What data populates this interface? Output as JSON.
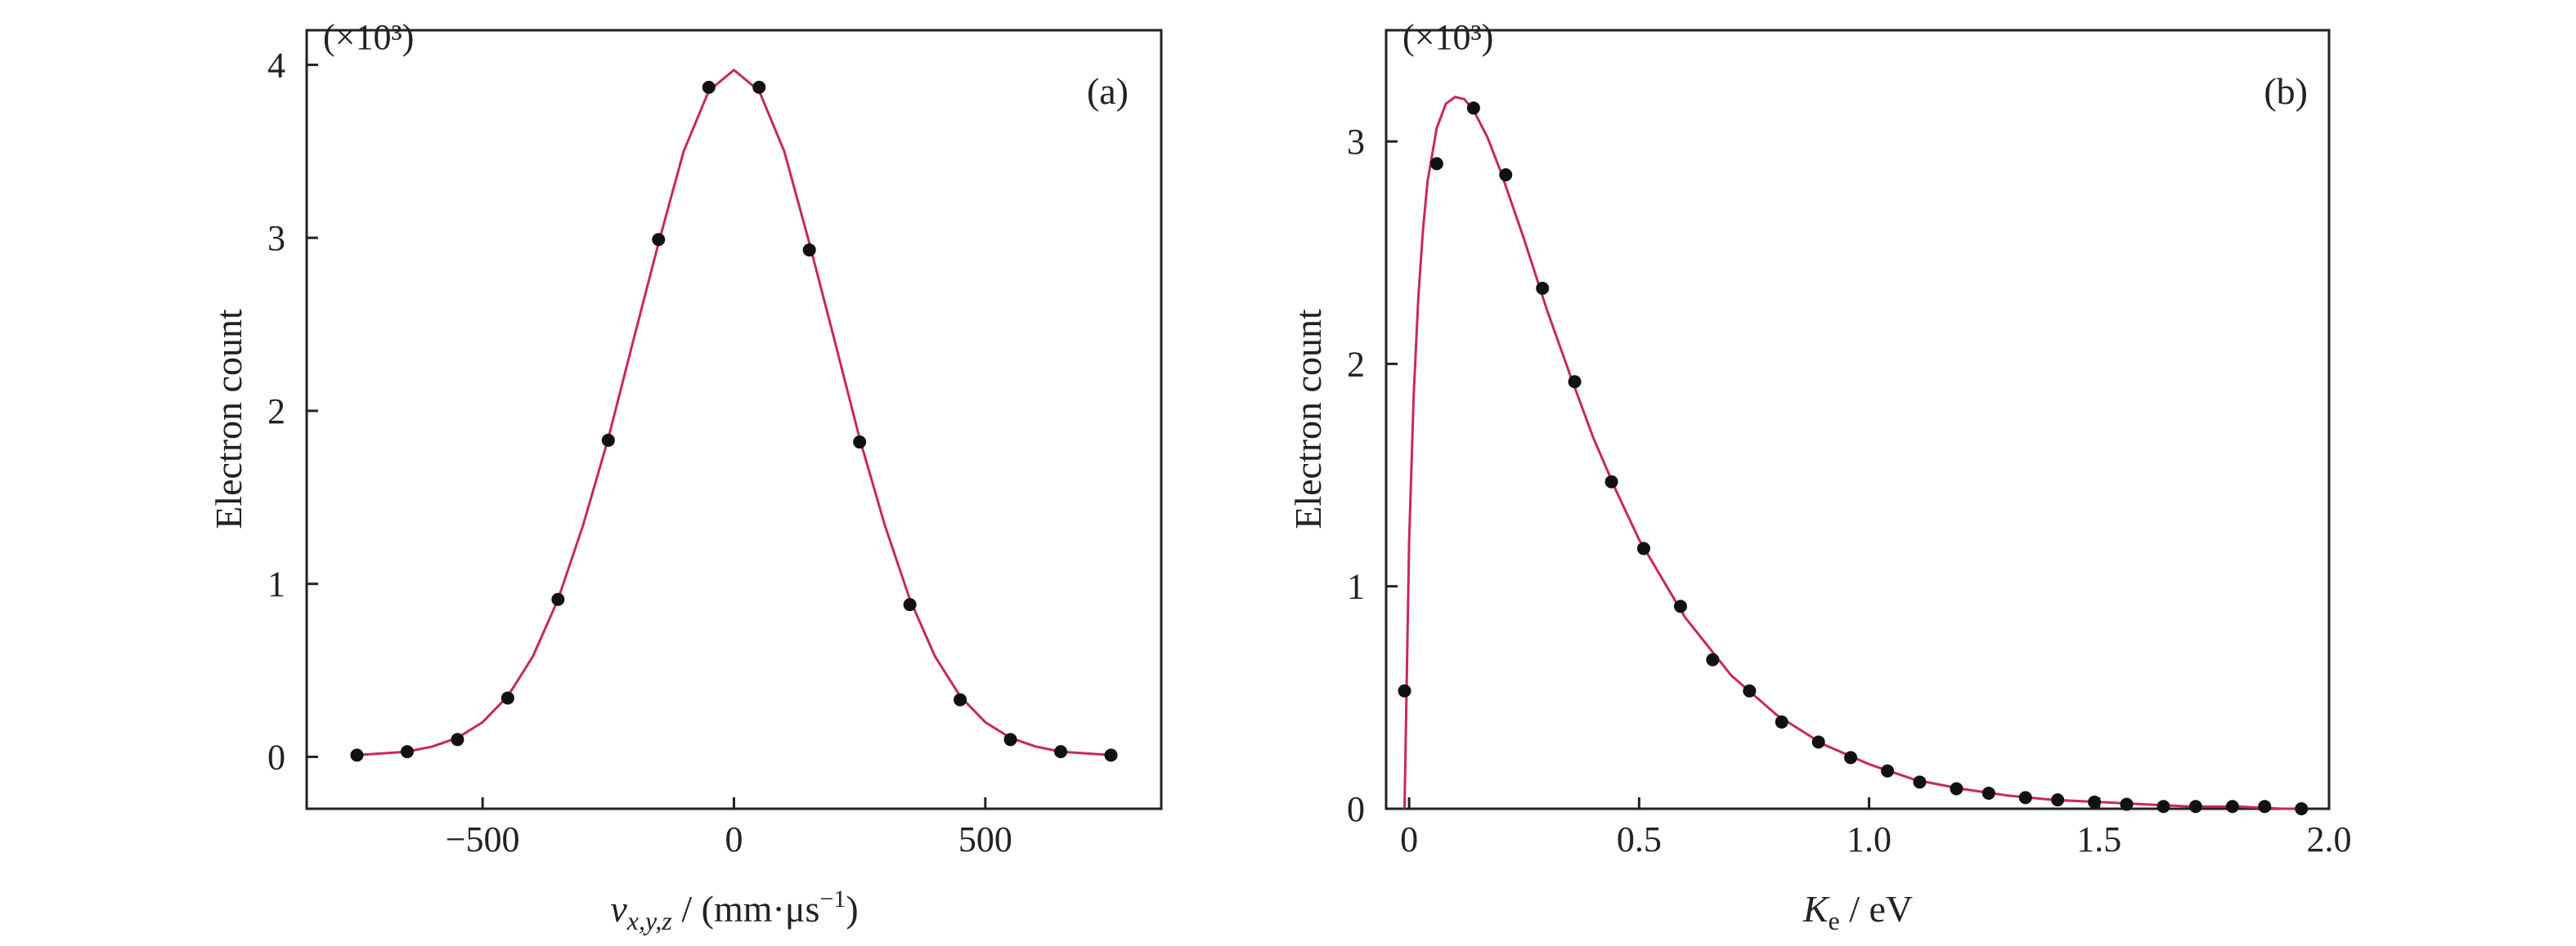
{
  "chart_data": [
    {
      "type": "scatter",
      "panel_label": "(a)",
      "multiplier": "(×10³)",
      "xlabel": {
        "var": "v",
        "sub": "x,y,z",
        "rest": " / (mm·μs",
        "sup": "−1",
        "close": ")"
      },
      "ylabel": "Electron count",
      "xlim": [
        -850,
        850
      ],
      "ylim": [
        -0.3,
        4.2
      ],
      "xticks": [
        -500,
        0,
        500
      ],
      "xtick_labels": [
        "−500",
        "0",
        "500"
      ],
      "yticks": [
        0,
        1,
        2,
        3,
        4
      ],
      "ytick_labels": [
        "0",
        "1",
        "2",
        "3",
        "4"
      ],
      "grid": false,
      "series": [
        {
          "kind": "points",
          "color": "#111111",
          "x": [
            -750,
            -650,
            -550,
            -450,
            -350,
            -250,
            -150,
            -50,
            50,
            150,
            250,
            350,
            450,
            550,
            650,
            750
          ],
          "y": [
            0.01,
            0.03,
            0.1,
            0.34,
            0.91,
            1.83,
            2.99,
            3.87,
            3.87,
            2.93,
            1.82,
            0.88,
            0.33,
            0.1,
            0.03,
            0.01
          ]
        },
        {
          "kind": "fit",
          "color": "#c8285a",
          "x": [
            -750,
            -700,
            -650,
            -600,
            -550,
            -500,
            -450,
            -400,
            -350,
            -300,
            -250,
            -200,
            -150,
            -100,
            -50,
            0,
            50,
            100,
            150,
            200,
            250,
            300,
            350,
            400,
            450,
            500,
            550,
            600,
            650,
            700,
            750
          ],
          "y": [
            0.01,
            0.02,
            0.03,
            0.06,
            0.11,
            0.2,
            0.35,
            0.58,
            0.91,
            1.34,
            1.84,
            2.41,
            2.97,
            3.5,
            3.85,
            3.97,
            3.85,
            3.5,
            2.97,
            2.41,
            1.84,
            1.34,
            0.91,
            0.58,
            0.35,
            0.2,
            0.11,
            0.06,
            0.03,
            0.02,
            0.01
          ]
        }
      ]
    },
    {
      "type": "scatter",
      "panel_label": "(b)",
      "multiplier": "(×10³)",
      "xlabel": {
        "var": "K",
        "sub": "e",
        "rest": " / eV"
      },
      "ylabel": "Electron count",
      "xlim": [
        -0.05,
        2.0
      ],
      "ylim": [
        0,
        3.5
      ],
      "xticks": [
        0,
        0.5,
        1.0,
        1.5,
        2.0
      ],
      "xtick_labels": [
        "0",
        "0.5",
        "1.0",
        "1.5",
        "2.0"
      ],
      "yticks": [
        0,
        1,
        2,
        3
      ],
      "ytick_labels": [
        "0",
        "1",
        "2",
        "3"
      ],
      "grid": false,
      "series": [
        {
          "kind": "points",
          "color": "#111111",
          "x": [
            -0.01,
            0.06,
            0.14,
            0.21,
            0.29,
            0.36,
            0.44,
            0.51,
            0.59,
            0.66,
            0.74,
            0.81,
            0.89,
            0.96,
            1.04,
            1.11,
            1.19,
            1.26,
            1.34,
            1.41,
            1.49,
            1.56,
            1.64,
            1.71,
            1.79,
            1.86,
            1.94
          ],
          "y": [
            0.53,
            2.9,
            3.15,
            2.85,
            2.34,
            1.92,
            1.47,
            1.17,
            0.91,
            0.67,
            0.53,
            0.39,
            0.3,
            0.23,
            0.17,
            0.12,
            0.09,
            0.07,
            0.05,
            0.04,
            0.03,
            0.02,
            0.01,
            0.01,
            0.01,
            0.01,
            0.0
          ]
        },
        {
          "kind": "fit",
          "color": "#c8285a",
          "x": [
            -0.01,
            0.0,
            0.01,
            0.02,
            0.03,
            0.04,
            0.06,
            0.08,
            0.1,
            0.12,
            0.14,
            0.17,
            0.2,
            0.25,
            0.3,
            0.35,
            0.4,
            0.45,
            0.5,
            0.6,
            0.7,
            0.8,
            0.9,
            1.0,
            1.1,
            1.2,
            1.3,
            1.4,
            1.5,
            1.6,
            1.7,
            1.8,
            1.9,
            1.95
          ],
          "y": [
            0.0,
            1.2,
            1.86,
            2.3,
            2.6,
            2.82,
            3.06,
            3.17,
            3.2,
            3.19,
            3.14,
            3.02,
            2.86,
            2.56,
            2.24,
            1.95,
            1.67,
            1.43,
            1.21,
            0.86,
            0.6,
            0.42,
            0.29,
            0.2,
            0.13,
            0.09,
            0.06,
            0.04,
            0.03,
            0.02,
            0.01,
            0.01,
            0.0,
            0.0
          ]
        }
      ]
    }
  ]
}
